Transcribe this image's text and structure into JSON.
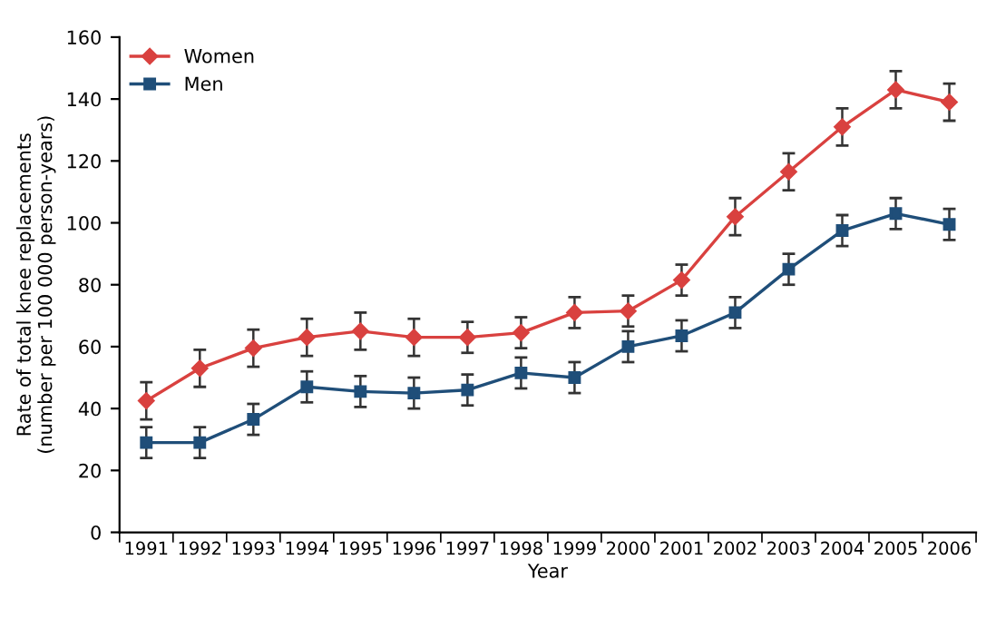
{
  "chart_data": {
    "type": "line",
    "xlabel": "Year",
    "ylabel": "Rate of total knee replacements\n(number per 100 000 person-years)",
    "categories": [
      "1991",
      "1992",
      "1993",
      "1994",
      "1995",
      "1996",
      "1997",
      "1998",
      "1999",
      "2000",
      "2001",
      "2002",
      "2003",
      "2004",
      "2005",
      "2006"
    ],
    "series": [
      {
        "name": "Women",
        "color": "#d9413f",
        "marker": "diamond",
        "values": [
          42.5,
          53,
          59.5,
          63,
          65,
          63,
          63,
          64.5,
          71,
          71.5,
          81.5,
          102,
          116.5,
          131,
          143,
          139
        ],
        "errors": [
          6,
          6,
          6,
          6,
          6,
          6,
          5,
          5,
          5,
          5,
          5,
          6,
          6,
          6,
          6,
          6
        ]
      },
      {
        "name": "Men",
        "color": "#1f4e79",
        "marker": "square",
        "values": [
          29,
          29,
          36.5,
          47,
          45.5,
          45,
          46,
          51.5,
          50,
          60,
          63.5,
          71,
          85,
          97.5,
          103,
          99.5
        ],
        "errors": [
          5,
          5,
          5,
          5,
          5,
          5,
          5,
          5,
          5,
          5,
          5,
          5,
          5,
          5,
          5,
          5
        ]
      }
    ],
    "ylim": [
      0,
      160
    ],
    "yticks": [
      0,
      20,
      40,
      60,
      80,
      100,
      120,
      140,
      160
    ],
    "grid": false,
    "legend": "top left",
    "line_style": "solid"
  }
}
